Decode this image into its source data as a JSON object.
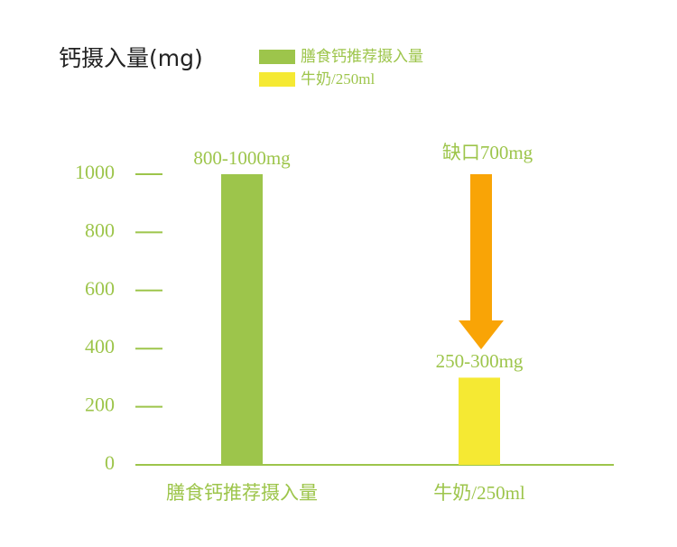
{
  "chart_data": {
    "type": "bar",
    "title": "钙摄入量(mg)",
    "categories": [
      "膳食钙推荐摄入量",
      "牛奶/250ml"
    ],
    "values": [
      1000,
      300
    ],
    "value_labels": [
      "800-1000mg",
      "250-300mg"
    ],
    "colors": [
      "#9dc54b",
      "#f5e933"
    ],
    "ylim": [
      0,
      1000
    ],
    "yticks": [
      0,
      200,
      400,
      600,
      800,
      1000
    ],
    "annotations": [
      {
        "text": "缺口700mg"
      }
    ]
  }
}
